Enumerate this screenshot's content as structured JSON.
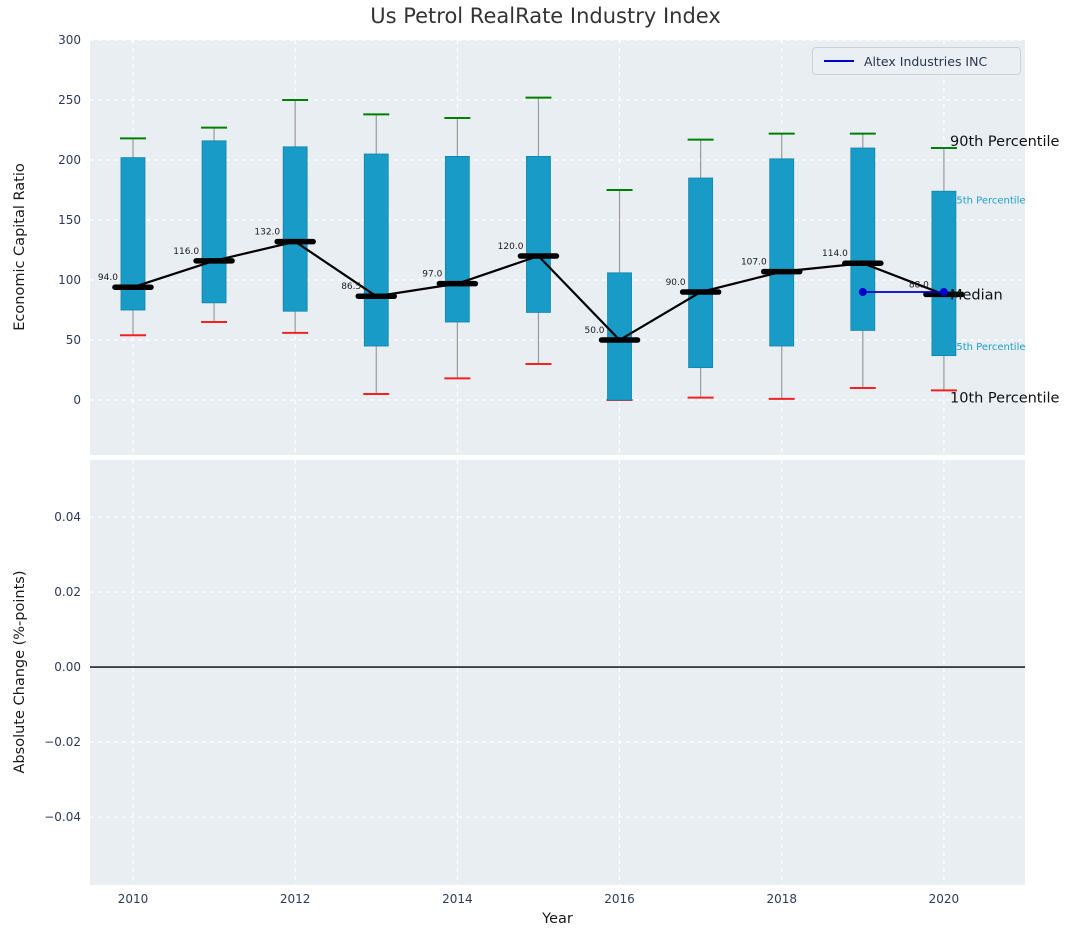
{
  "chart_data": {
    "type": "boxplot",
    "title": "Us Petrol RealRate Industry Index",
    "xlabel": "Year",
    "xlim": [
      2009.47,
      2021.0
    ],
    "xticks": [
      2010,
      2012,
      2014,
      2016,
      2018,
      2020
    ],
    "legend": {
      "label": "Altex Industries INC",
      "line_color": "#0000cc",
      "position": "upper right"
    },
    "top_panel": {
      "ylabel": "Economic Capital Ratio",
      "ylim": [
        -45.8,
        300
      ],
      "yticks": [
        0,
        50,
        100,
        150,
        200,
        250,
        300
      ],
      "grid": true,
      "boxes": [
        {
          "year": 2010,
          "p10": 54,
          "p25": 75,
          "median": 94.0,
          "p75": 202,
          "p90": 218,
          "label": "94.0"
        },
        {
          "year": 2011,
          "p10": 65,
          "p25": 81,
          "median": 116.0,
          "p75": 216,
          "p90": 227,
          "label": "116.0"
        },
        {
          "year": 2012,
          "p10": 56,
          "p25": 74,
          "median": 132.0,
          "p75": 211,
          "p90": 250,
          "label": "132.0"
        },
        {
          "year": 2013,
          "p10": 5,
          "p25": 45,
          "median": 86.5,
          "p75": 205,
          "p90": 238,
          "label": "86.5"
        },
        {
          "year": 2014,
          "p10": 18,
          "p25": 65,
          "median": 97.0,
          "p75": 203,
          "p90": 235,
          "label": "97.0"
        },
        {
          "year": 2015,
          "p10": 30,
          "p25": 73,
          "median": 120.0,
          "p75": 203,
          "p90": 252,
          "label": "120.0"
        },
        {
          "year": 2016,
          "p10": 0,
          "p25": 0,
          "median": 50.0,
          "p75": 106,
          "p90": 175,
          "label": "50.0"
        },
        {
          "year": 2017,
          "p10": 2,
          "p25": 27,
          "median": 90.0,
          "p75": 185,
          "p90": 217,
          "label": "90.0"
        },
        {
          "year": 2018,
          "p10": 1,
          "p25": 45,
          "median": 107.0,
          "p75": 201,
          "p90": 222,
          "label": "107.0"
        },
        {
          "year": 2019,
          "p10": 10,
          "p25": 58,
          "median": 114.0,
          "p75": 210,
          "p90": 222,
          "label": "114.0"
        },
        {
          "year": 2020,
          "p10": 8,
          "p25": 37,
          "median": 88.0,
          "p75": 174,
          "p90": 210,
          "label": "88.0"
        }
      ],
      "company_series": {
        "name": "Altex Industries INC",
        "color": "#0000cc",
        "points": [
          {
            "x": 2019,
            "y": 90
          },
          {
            "x": 2020,
            "y": 90
          }
        ]
      },
      "percentile_annotations": [
        {
          "text": "90th Percentile",
          "value": 216,
          "color": "#111111",
          "size": 14.5
        },
        {
          "text": "75th Percentile",
          "value": 168,
          "color": "#1d9fca",
          "size": 10
        },
        {
          "text": "Median",
          "value": 88,
          "color": "#111111",
          "size": 14.5
        },
        {
          "text": "25th Percentile",
          "value": 46,
          "color": "#1d9fca",
          "size": 10
        },
        {
          "text": "10th Percentile",
          "value": 2,
          "color": "#111111",
          "size": 14.5
        }
      ]
    },
    "bottom_panel": {
      "ylabel": "Absolute Change (%-points)",
      "ylim": [
        -0.0581,
        0.0552
      ],
      "yticks": [
        0.04,
        0.02,
        0,
        -0.02,
        -0.04
      ],
      "ytick_labels": [
        "0.04",
        "0.02",
        "0.00",
        "−0.02",
        "−0.04"
      ],
      "grid": true,
      "zero_line": 0.0
    },
    "colors": {
      "panel_bg": "#e9eef2",
      "grid": "#ffffff",
      "box_fill": "#199bc7",
      "box_edge": "#1285a8",
      "cap_top": "#008000",
      "cap_bottom": "#f02222",
      "whisker": "#9a9a9a",
      "median": "#000000",
      "median_line": "#000000",
      "tick_label": "#2e3a59"
    }
  }
}
